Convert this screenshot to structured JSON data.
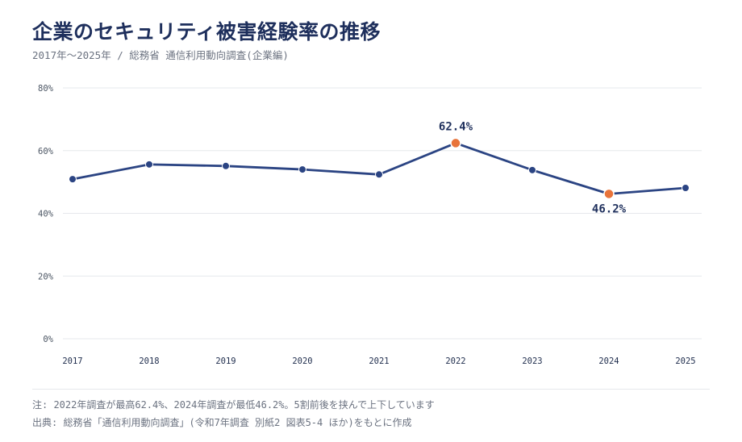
{
  "header": {
    "title": "企業のセキュリティ被害経験率の推移",
    "subtitle": "2017年～2025年 / 総務省 通信利用動向調査(企業編)"
  },
  "footer": {
    "note": "注: 2022年調査が最高62.4%、2024年調査が最低46.2%。5割前後を挟んで上下しています",
    "source": "出典: 総務省「通信利用動向調査」(令和7年調査 別紙2 図表5-4 ほか)をもとに作成"
  },
  "colors": {
    "line": "#2b4483",
    "point": "#2b4483",
    "highlight": "#e8733a",
    "grid": "#e6e8ec",
    "title": "#1e2f5c"
  },
  "chart_data": {
    "type": "line",
    "categories": [
      "2017",
      "2018",
      "2019",
      "2020",
      "2021",
      "2022",
      "2023",
      "2024",
      "2025"
    ],
    "series": [
      {
        "values": [
          50.9,
          55.6,
          55.1,
          54.0,
          52.4,
          62.4,
          53.8,
          46.2,
          48.1
        ]
      }
    ],
    "ylim": [
      0,
      80
    ],
    "yticks": [
      0,
      20,
      40,
      60,
      80
    ],
    "ytick_labels": [
      "0%",
      "20%",
      "40%",
      "60%",
      "80%"
    ],
    "grid": true,
    "annotations": [
      {
        "category": "2022",
        "value": 62.4,
        "label": "62.4%",
        "position": "above"
      },
      {
        "category": "2024",
        "value": 46.2,
        "label": "46.2%",
        "position": "below"
      }
    ]
  }
}
